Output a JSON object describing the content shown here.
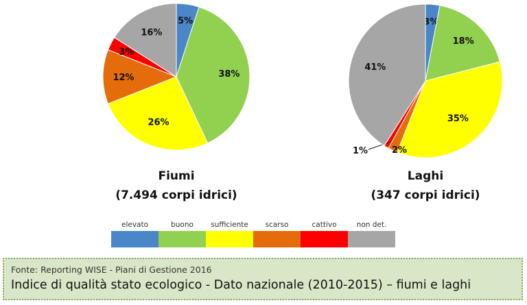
{
  "chart_data": [
    {
      "type": "pie",
      "title": "Fiumi",
      "subtitle": "(7.494 corpi idrici)",
      "categories": [
        "elevato",
        "buono",
        "sufficiente",
        "scarso",
        "cattivo",
        "non det."
      ],
      "values": [
        5,
        38,
        26,
        12,
        3,
        16
      ],
      "labels": [
        "5%",
        "38%",
        "26%",
        "12%",
        "3%",
        "16%"
      ]
    },
    {
      "type": "pie",
      "title": "Laghi",
      "subtitle": "(347 corpi idrici)",
      "categories": [
        "elevato",
        "buono",
        "sufficiente",
        "scarso",
        "cattivo",
        "non det."
      ],
      "values": [
        3,
        18,
        35,
        2,
        1,
        41
      ],
      "labels": [
        "3%",
        "18%",
        "35%",
        "2%",
        "1%",
        "41%"
      ]
    }
  ],
  "legend": [
    {
      "label": "elevato",
      "color": "#4a86c8"
    },
    {
      "label": "buono",
      "color": "#92d050"
    },
    {
      "label": "sufficiente",
      "color": "#ffff00"
    },
    {
      "label": "scarso",
      "color": "#e46c0a"
    },
    {
      "label": "cattivo",
      "color": "#ff0000"
    },
    {
      "label": "non det.",
      "color": "#a6a6a6"
    }
  ],
  "footer": {
    "source": "Fonte: Reporting WISE - Piani di Gestione 2016",
    "caption": "Indice di qualità stato ecologico - Dato nazionale (2010-2015) – fiumi e laghi"
  }
}
